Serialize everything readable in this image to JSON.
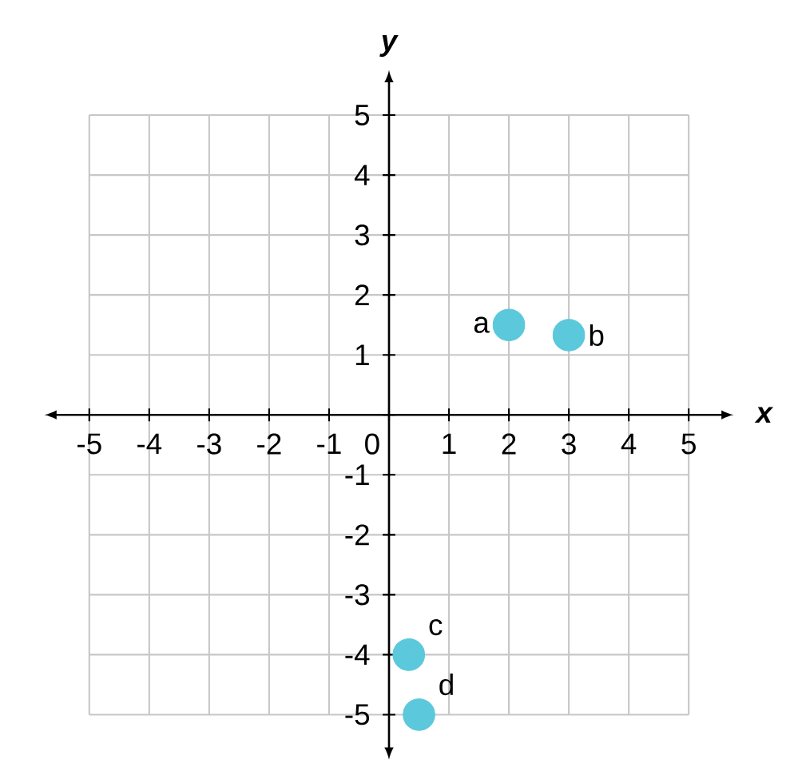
{
  "chart_data": {
    "type": "scatter",
    "xlabel": "x",
    "ylabel": "y",
    "x": [
      2,
      3,
      0.33,
      0.5
    ],
    "values": [
      1.5,
      1.33,
      -4,
      -5
    ],
    "color": "#5bc8dc",
    "marker": "circle",
    "xlim": [
      -5,
      5
    ],
    "ylim": [
      -5,
      5
    ],
    "xticks": [
      -5,
      -4,
      -3,
      -2,
      -1,
      0,
      1,
      2,
      3,
      4,
      5
    ],
    "yticks": [
      -5,
      -4,
      -3,
      -2,
      -1,
      {
        "value": 0,
        "label": null
      },
      1,
      2,
      3,
      4,
      5
    ],
    "grid": true,
    "annotations": [
      {
        "text": "a",
        "x": 2,
        "y": 1.5
      },
      {
        "text": "b",
        "x": 3,
        "y": 1.33
      },
      {
        "text": "c",
        "x": 0.33,
        "y": -4
      },
      {
        "text": "d",
        "x": 0.5,
        "y": -5
      }
    ]
  }
}
